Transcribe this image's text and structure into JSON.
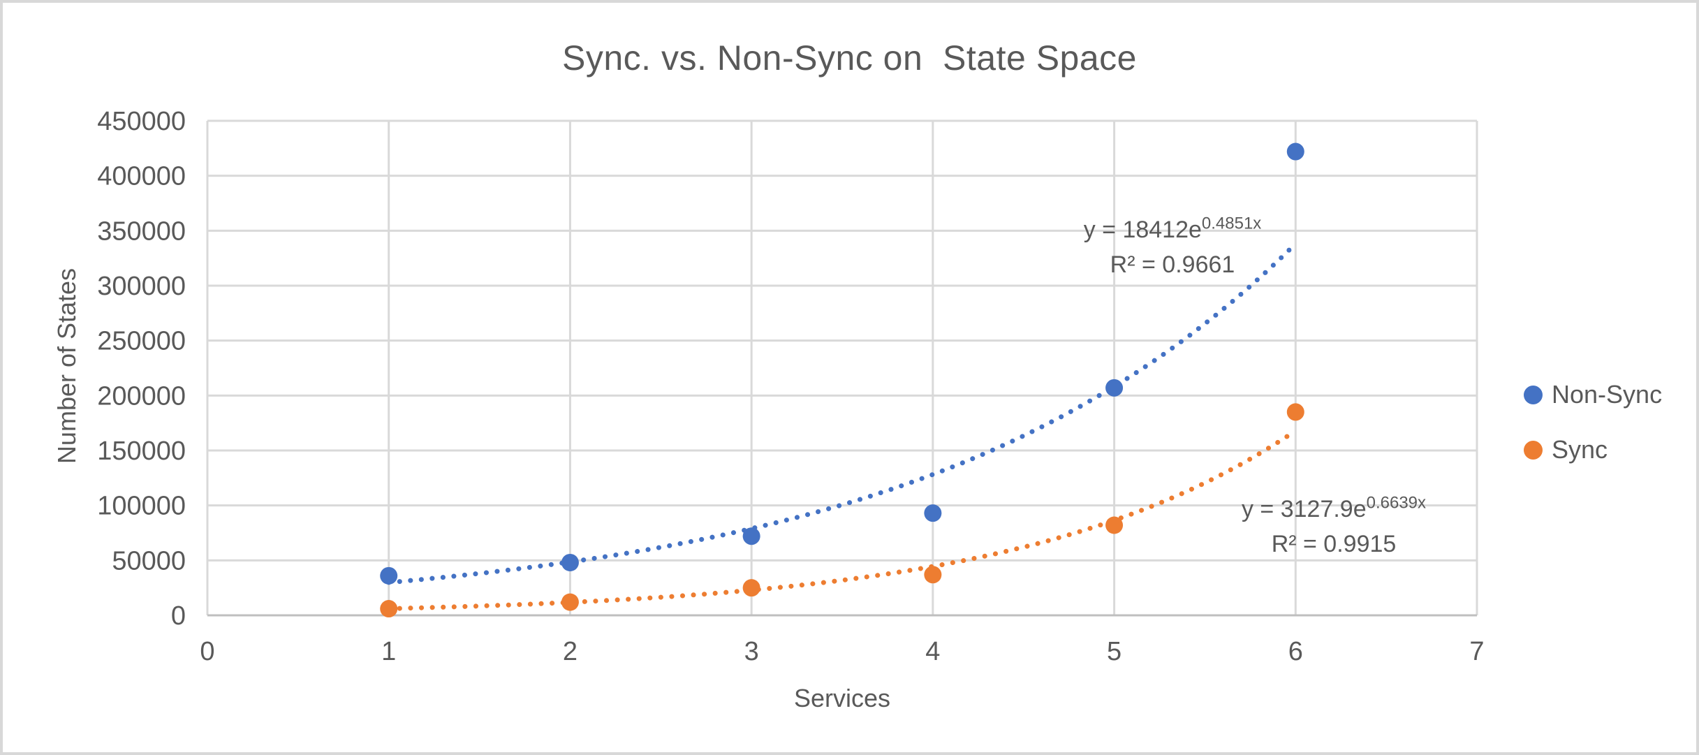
{
  "window": {
    "background": "#FFFFFF",
    "border_color": "#D8D8D8"
  },
  "chart_data": {
    "type": "scatter",
    "title": "Sync. vs. Non-Sync on  State Space",
    "xlabel": "Services",
    "ylabel": "Number of States",
    "xlim": [
      0,
      7
    ],
    "ylim": [
      0,
      450000
    ],
    "x_ticks": [
      0,
      1,
      2,
      3,
      4,
      5,
      6,
      7
    ],
    "y_ticks": [
      0,
      50000,
      100000,
      150000,
      200000,
      250000,
      300000,
      350000,
      400000,
      450000
    ],
    "grid": true,
    "legend_position": "right",
    "gridline_color": "#D9D9D9",
    "axis_line_color": "#BFBFBF",
    "axis_text_color": "#595959",
    "x": [
      1,
      2,
      3,
      4,
      5,
      6
    ],
    "series": [
      {
        "name": "Non-Sync",
        "color": "#4472C4",
        "values": [
          36000,
          48000,
          72000,
          93000,
          207000,
          422000
        ],
        "trendline": {
          "type": "exponential",
          "a": 18412,
          "b": 0.4851,
          "x_start": 1,
          "x_end": 6,
          "label_base": "y = 18412e",
          "label_exponent": "0.4851x",
          "r2_label": "R² = 0.9661"
        }
      },
      {
        "name": "Sync",
        "color": "#ED7D31",
        "values": [
          6000,
          12000,
          25000,
          37000,
          82000,
          185000
        ],
        "trendline": {
          "type": "exponential",
          "a": 3127.9,
          "b": 0.6639,
          "x_start": 1,
          "x_end": 6,
          "label_base": "y = 3127.9e",
          "label_exponent": "0.6639x",
          "r2_label": "R² = 0.9915"
        }
      }
    ]
  }
}
